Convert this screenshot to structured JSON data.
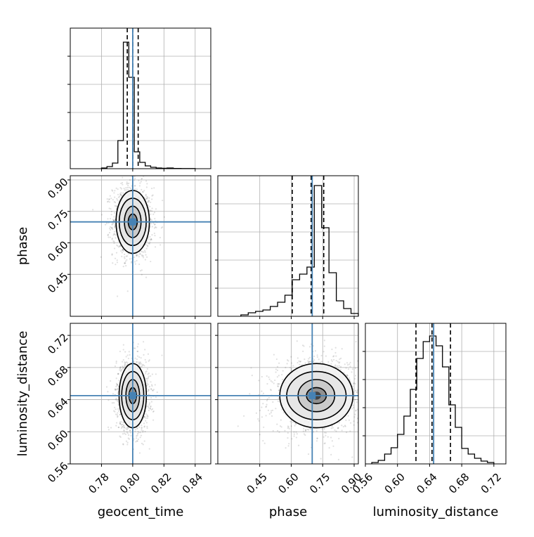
{
  "chart_data": {
    "type": "corner",
    "parameters": [
      "geocent_time",
      "phase",
      "luminosity_distance"
    ],
    "axis_labels": {
      "x": [
        "geocent_time",
        "phase",
        "luminosity_distance"
      ],
      "y_row1": "phase",
      "y_row2": "luminosity_distance"
    },
    "truths": {
      "geocent_time": 0.8,
      "phase": 0.7,
      "luminosity_distance": 0.645
    },
    "ranges": {
      "geocent_time": [
        0.76,
        0.85
      ],
      "phase": [
        0.25,
        0.92
      ],
      "luminosity_distance": [
        0.56,
        0.735
      ]
    },
    "ticks": {
      "geocent_time": [
        "0.78",
        "0.80",
        "0.82",
        "0.84"
      ],
      "phase": [
        "0.45",
        "0.60",
        "0.75",
        "0.90"
      ],
      "luminosity_distance": [
        "0.56",
        "0.60",
        "0.64",
        "0.68",
        "0.72"
      ]
    },
    "quantiles": {
      "geocent_time": [
        0.7965,
        0.8,
        0.8035
      ],
      "phase": [
        0.605,
        0.695,
        0.755
      ],
      "luminosity_distance": [
        0.623,
        0.643,
        0.666
      ]
    },
    "histograms": {
      "geocent_time": {
        "edges": [
          0.78,
          0.7835,
          0.787,
          0.7905,
          0.794,
          0.7975,
          0.801,
          0.8045,
          0.808,
          0.8115,
          0.815,
          0.8185,
          0.822,
          0.826,
          0.831,
          0.836,
          0.84
        ],
        "counts": [
          0.005,
          0.015,
          0.04,
          0.2,
          0.9,
          0.65,
          0.12,
          0.045,
          0.02,
          0.01,
          0.005,
          0.003,
          0.005,
          0.002,
          0.001,
          0.001
        ]
      },
      "phase": {
        "edges": [
          0.36,
          0.395,
          0.43,
          0.465,
          0.5,
          0.535,
          0.57,
          0.605,
          0.64,
          0.675,
          0.71,
          0.745,
          0.78,
          0.815,
          0.85,
          0.885,
          0.92
        ],
        "counts": [
          0.01,
          0.025,
          0.035,
          0.045,
          0.07,
          0.1,
          0.15,
          0.26,
          0.3,
          0.35,
          0.93,
          0.63,
          0.31,
          0.11,
          0.055,
          0.02
        ]
      },
      "luminosity_distance": {
        "edges": [
          0.568,
          0.576,
          0.584,
          0.592,
          0.6,
          0.608,
          0.616,
          0.624,
          0.632,
          0.64,
          0.648,
          0.656,
          0.664,
          0.672,
          0.68,
          0.688,
          0.696,
          0.704,
          0.712,
          0.72
        ],
        "counts": [
          0.01,
          0.025,
          0.07,
          0.115,
          0.21,
          0.34,
          0.53,
          0.75,
          0.87,
          0.91,
          0.84,
          0.69,
          0.42,
          0.26,
          0.11,
          0.07,
          0.04,
          0.02,
          0.01
        ]
      }
    },
    "contours_2d": [
      {
        "x": "geocent_time",
        "y": "phase",
        "center": [
          0.8,
          0.7
        ],
        "sigma": [
          0.0055,
          0.075
        ],
        "rho": -0.05
      },
      {
        "x": "geocent_time",
        "y": "luminosity_distance",
        "center": [
          0.8,
          0.645
        ],
        "sigma": [
          0.0045,
          0.02
        ],
        "rho": 0.0
      },
      {
        "x": "phase",
        "y": "luminosity_distance",
        "center": [
          0.72,
          0.645
        ],
        "sigma": [
          0.09,
          0.02
        ],
        "rho": 0.05
      }
    ],
    "grid": true
  }
}
